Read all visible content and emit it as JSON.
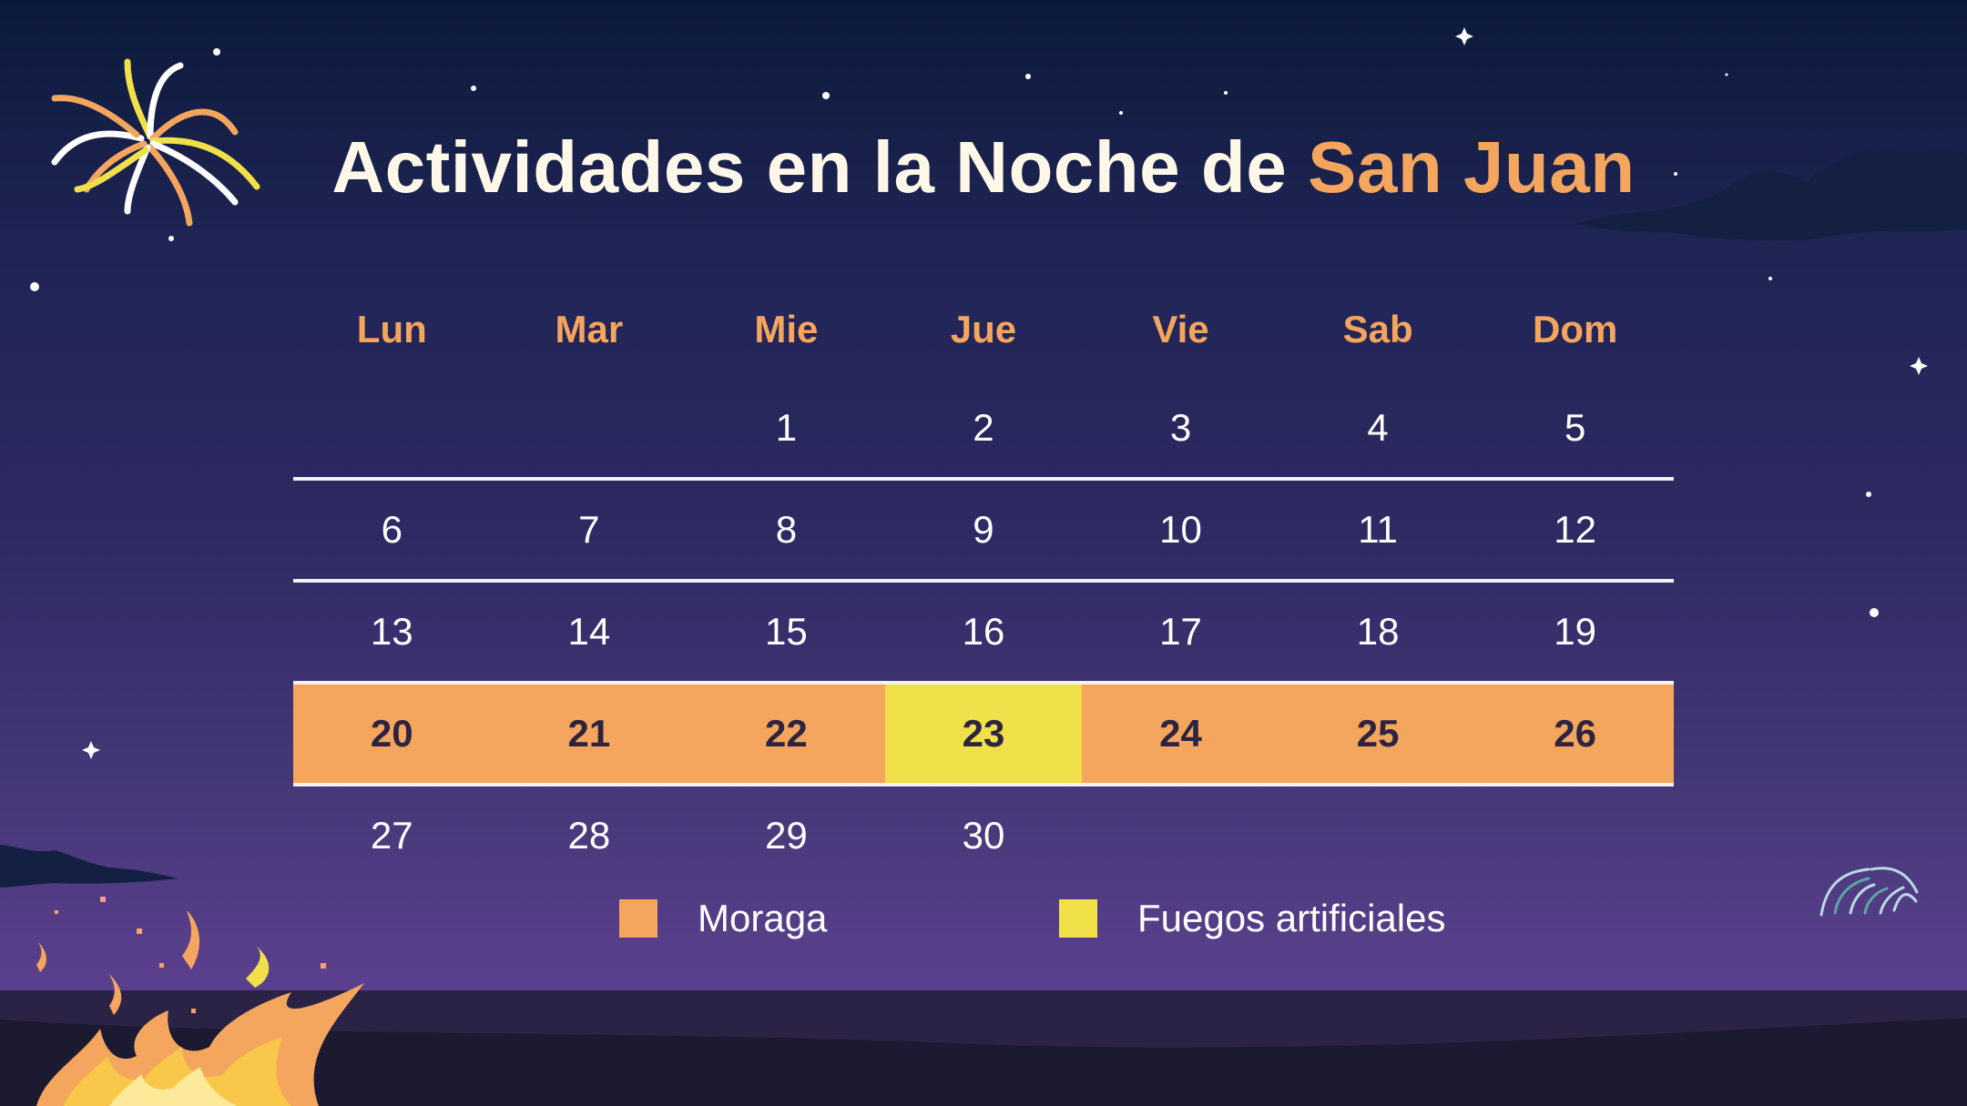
{
  "title": {
    "main": "Actividades en la Noche de ",
    "accent": "San Juan"
  },
  "colors": {
    "accent": "#f4a55e",
    "moraga": "#f4a55e",
    "fuegos": "#f0e04a",
    "text": "#ffffff"
  },
  "weekdays": [
    "Lun",
    "Mar",
    "Mie",
    "Jue",
    "Vie",
    "Sab",
    "Dom"
  ],
  "weeks": [
    [
      "",
      "",
      "1",
      "2",
      "3",
      "4",
      "5"
    ],
    [
      "6",
      "7",
      "8",
      "9",
      "10",
      "11",
      "12"
    ],
    [
      "13",
      "14",
      "15",
      "16",
      "17",
      "18",
      "19"
    ],
    [
      "20",
      "21",
      "22",
      "23",
      "24",
      "25",
      "26"
    ],
    [
      "27",
      "28",
      "29",
      "30",
      "",
      "",
      ""
    ]
  ],
  "legend": {
    "moraga": "Moraga",
    "fuegos": "Fuegos artificiales"
  },
  "icons": [
    "fireworks-icon",
    "bonfire-icon",
    "cloud-icon",
    "star-icon"
  ]
}
